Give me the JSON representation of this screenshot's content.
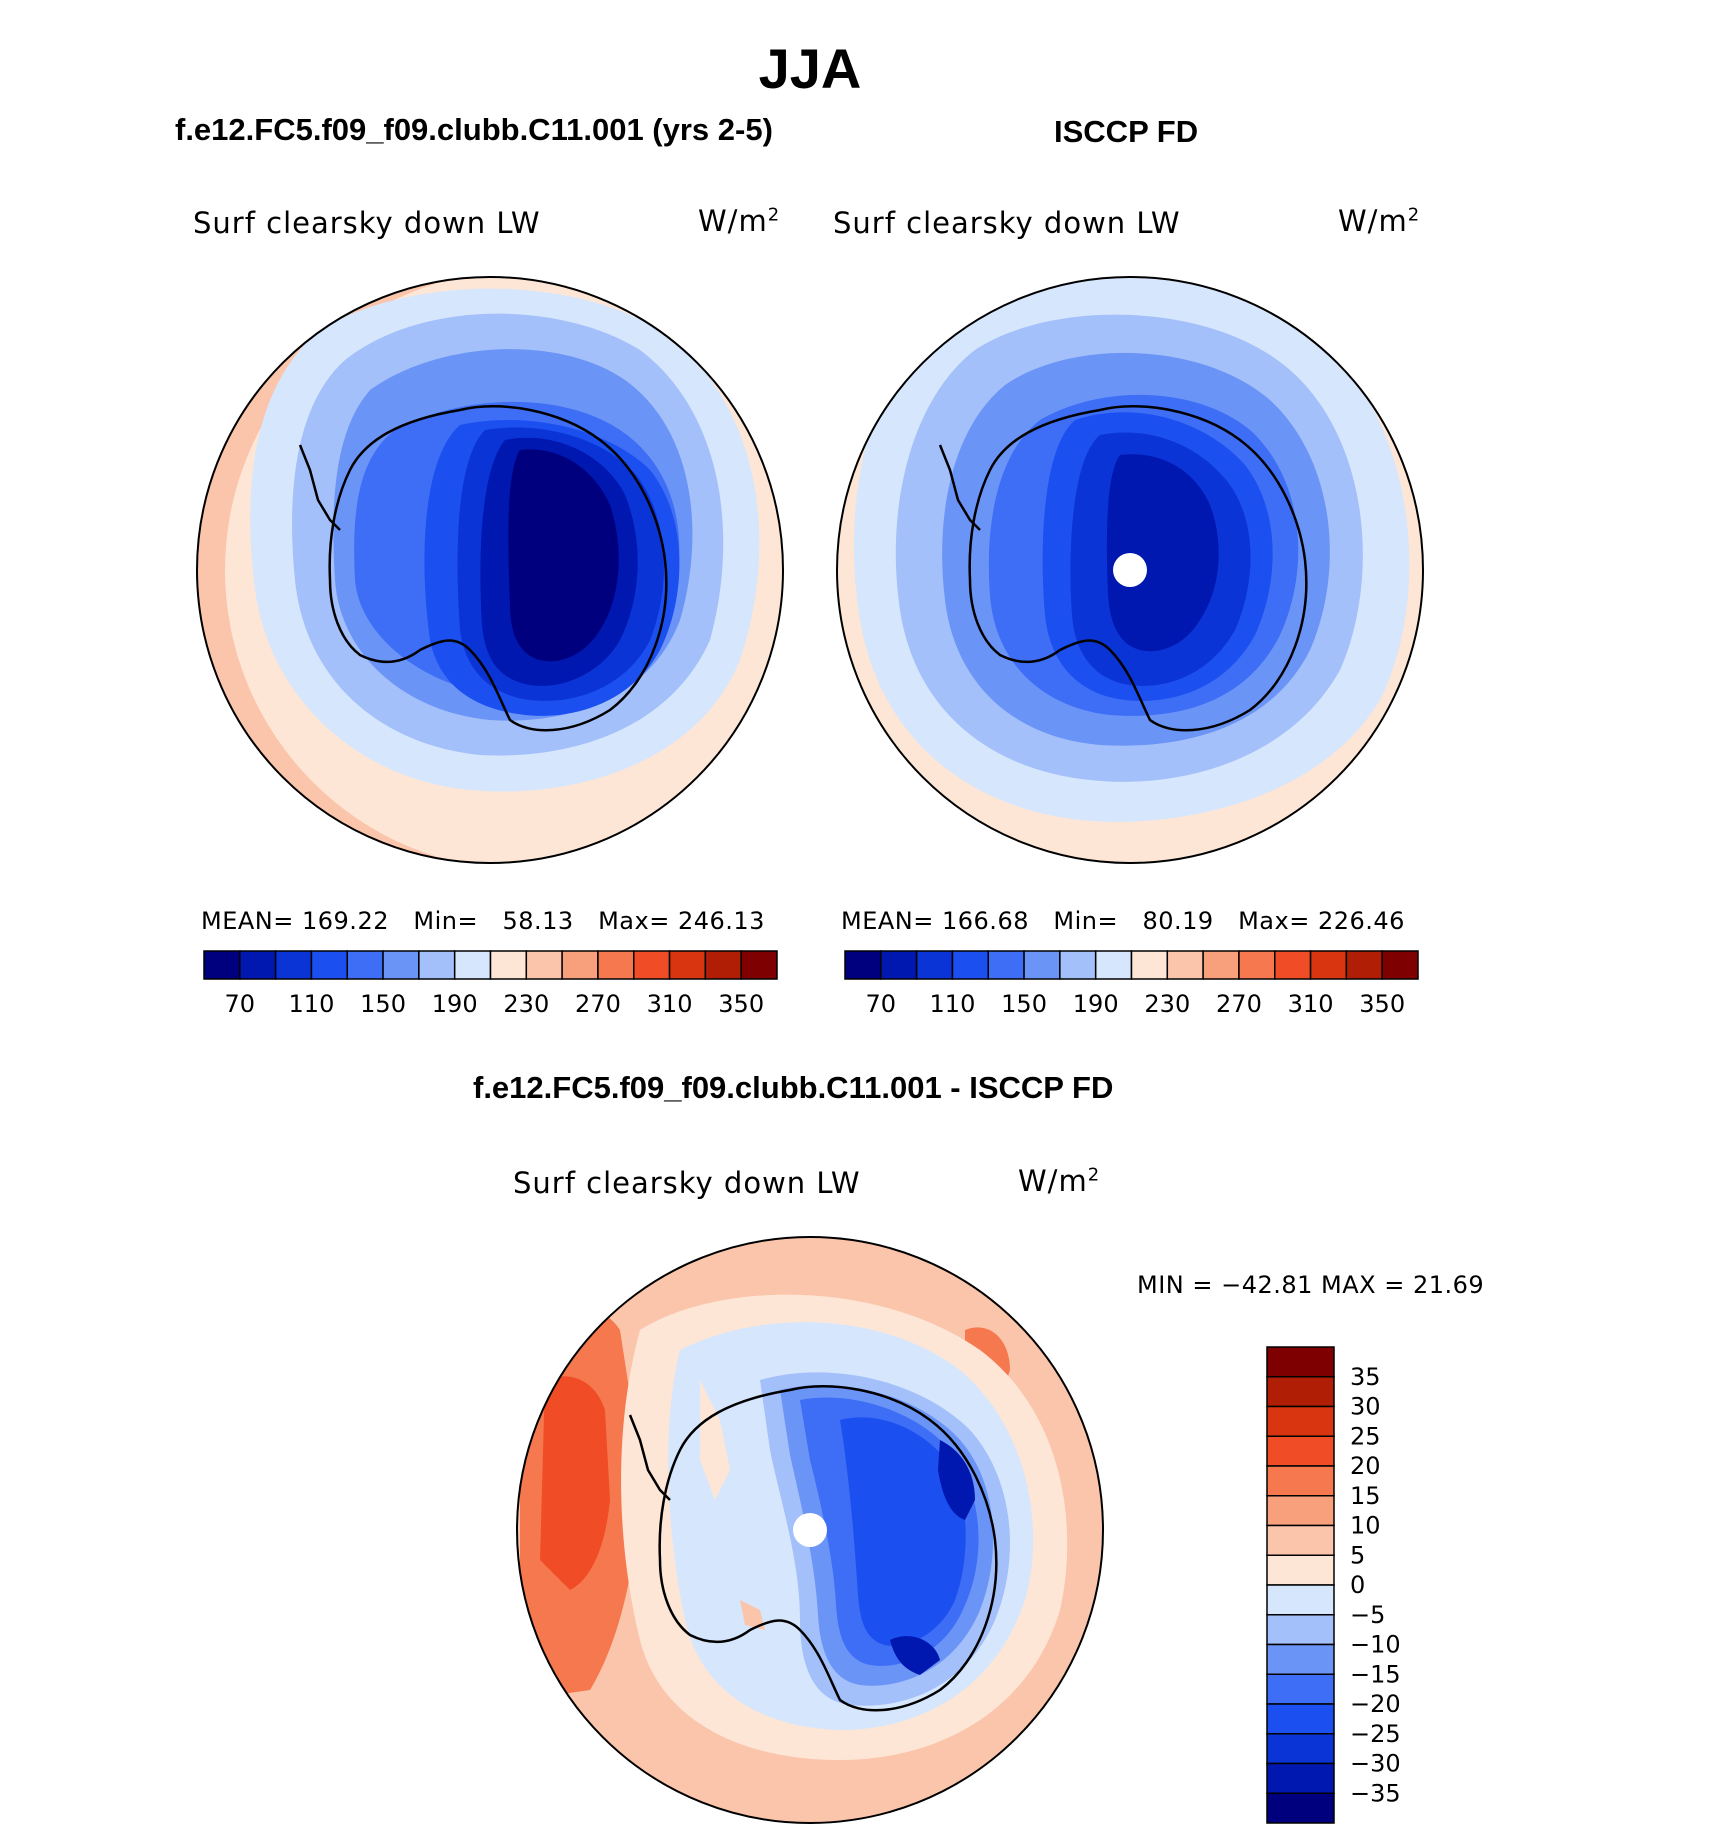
{
  "title": "JJA",
  "panels": [
    {
      "title": "f.e12.FC5.f09_f09.clubb.C11.001 (yrs 2-5)",
      "variable": "Surf clearsky down LW",
      "units_base": "W/m",
      "units_exp": "2",
      "stats": {
        "mean_label": "MEAN=",
        "mean": "169.22",
        "min_label": "Min=",
        "min": "58.13",
        "max_label": "Max=",
        "max": "246.13"
      }
    },
    {
      "title": "ISCCP FD",
      "variable": "Surf clearsky down LW",
      "units_base": "W/m",
      "units_exp": "2",
      "stats": {
        "mean_label": "MEAN=",
        "mean": "166.68",
        "min_label": "Min=",
        "min": "80.19",
        "max_label": "Max=",
        "max": "226.46"
      }
    },
    {
      "title": "f.e12.FC5.f09_f09.clubb.C11.001 - ISCCP FD",
      "variable": "Surf clearsky down LW",
      "units_base": "W/m",
      "units_exp": "2",
      "stats_text": "MIN = −42.81 MAX =  21.69"
    }
  ],
  "chart_data": [
    {
      "type": "heatmap",
      "projection": "south-polar-stereographic",
      "title": "f.e12.FC5.f09_f09.clubb.C11.001 (yrs 2-5)",
      "colorbar": {
        "orientation": "horizontal",
        "tick_labels": [
          "70",
          "110",
          "150",
          "190",
          "230",
          "270",
          "310",
          "350"
        ],
        "colors": [
          "#00007f",
          "#0018b0",
          "#0b34d6",
          "#1b4ff0",
          "#3d6ef5",
          "#6b94f7",
          "#a4c0fa",
          "#d6e6fc",
          "#fde6d6",
          "#fbc5ab",
          "#f8a07b",
          "#f5784f",
          "#f04d26",
          "#d93510",
          "#b01e06",
          "#7f0000"
        ]
      },
      "stats": {
        "mean": 169.22,
        "min": 58.13,
        "max": 246.13
      }
    },
    {
      "type": "heatmap",
      "projection": "south-polar-stereographic",
      "title": "ISCCP FD",
      "colorbar": {
        "orientation": "horizontal",
        "tick_labels": [
          "70",
          "110",
          "150",
          "190",
          "230",
          "270",
          "310",
          "350"
        ],
        "colors": [
          "#00007f",
          "#0018b0",
          "#0b34d6",
          "#1b4ff0",
          "#3d6ef5",
          "#6b94f7",
          "#a4c0fa",
          "#d6e6fc",
          "#fde6d6",
          "#fbc5ab",
          "#f8a07b",
          "#f5784f",
          "#f04d26",
          "#d93510",
          "#b01e06",
          "#7f0000"
        ]
      },
      "stats": {
        "mean": 166.68,
        "min": 80.19,
        "max": 226.46
      }
    },
    {
      "type": "heatmap",
      "projection": "south-polar-stereographic",
      "title": "f.e12.FC5.f09_f09.clubb.C11.001 - ISCCP FD",
      "colorbar": {
        "orientation": "vertical",
        "tick_labels": [
          "35",
          "30",
          "25",
          "20",
          "15",
          "10",
          "5",
          "0",
          "−5",
          "−10",
          "−15",
          "−20",
          "−25",
          "−30",
          "−35"
        ],
        "colors": [
          "#7f0000",
          "#b01e06",
          "#d93510",
          "#f04d26",
          "#f5784f",
          "#f8a07b",
          "#fbc5ab",
          "#fde6d6",
          "#d6e6fc",
          "#a4c0fa",
          "#6b94f7",
          "#3d6ef5",
          "#1b4ff0",
          "#0b34d6",
          "#0018b0",
          "#00007f"
        ]
      },
      "stats": {
        "min": -42.81,
        "max": 21.69
      }
    }
  ]
}
